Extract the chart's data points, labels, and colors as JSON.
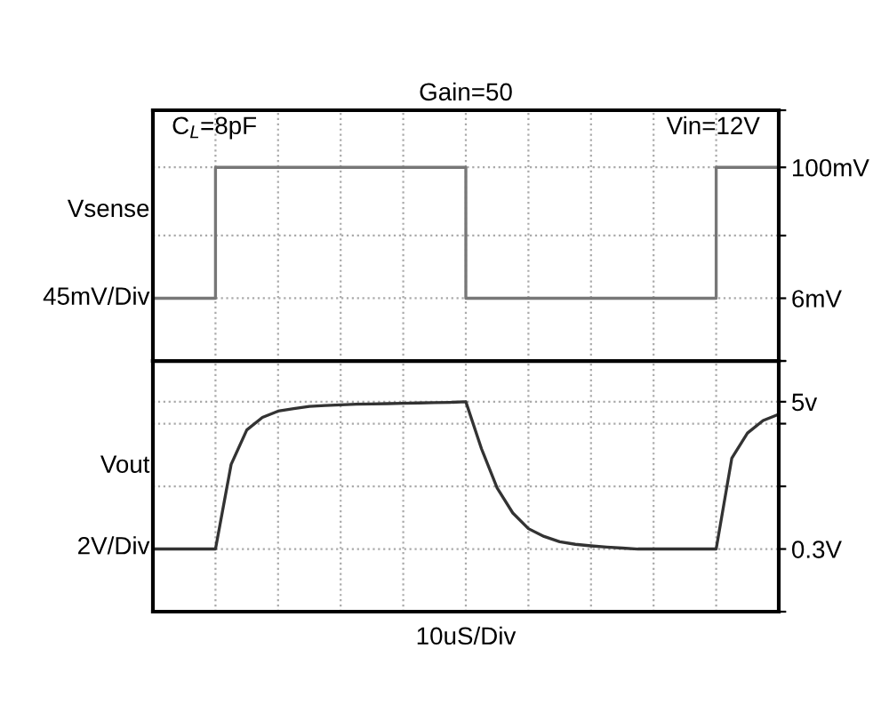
{
  "chart_data": [
    {
      "type": "step",
      "title": "Gain=50",
      "ylabel": "Vsense",
      "annotations": [
        "45mV/Div",
        "C$_{L}$=8pF",
        "Vin=12V"
      ],
      "categories": [
        null,
        null,
        null,
        null,
        null,
        null,
        null,
        null,
        null,
        null,
        null
      ],
      "ylim": [
        -39,
        141
      ],
      "yticks": [
        {
          "value": -39,
          "label": null
        },
        {
          "value": 6,
          "label": "6mV"
        },
        {
          "value": 51,
          "label": null
        },
        {
          "value": 100,
          "label": "100mV"
        },
        {
          "value": 141,
          "label": null
        }
      ],
      "tick_labels": "y",
      "grid": true,
      "series": [
        {
          "color": "#777777",
          "values": [
            6,
            100,
            100,
            100,
            100,
            6,
            6,
            6,
            6,
            100,
            100
          ]
        }
      ]
    },
    {
      "type": "line",
      "ylabel": "Vout",
      "xlabel": "10uS/Div",
      "annotations": [
        "2V/Div"
      ],
      "categories": [
        null,
        null,
        null,
        null,
        null,
        null,
        null,
        null,
        null,
        null,
        null,
        null,
        null,
        null,
        null,
        null,
        null,
        null,
        null,
        null,
        null,
        null,
        null,
        null,
        null,
        null,
        null,
        null,
        null,
        null,
        null,
        null,
        null,
        null,
        null,
        null,
        null,
        null,
        null,
        null,
        null
      ],
      "ylim": [
        -1.7,
        6.3
      ],
      "yticks": [
        {
          "value": -1.7,
          "label": null
        },
        {
          "value": 0.3,
          "label": "0.3V"
        },
        {
          "value": 2.3,
          "label": null
        },
        {
          "value": 4.3,
          "label": null
        },
        {
          "value": 5,
          "label": "5v"
        },
        {
          "value": 6.3,
          "label": null
        }
      ],
      "tick_labels": "y",
      "grid": true,
      "series": [
        {
          "color": "#333333",
          "values": [
            0.3,
            0.3,
            0.3,
            0.3,
            0.3,
            3.0,
            4.1,
            4.5,
            4.7,
            4.78,
            4.85,
            4.88,
            4.9,
            4.92,
            4.93,
            4.94,
            4.95,
            4.96,
            4.97,
            4.98,
            5.0,
            3.5,
            2.25,
            1.45,
            0.95,
            0.7,
            0.53,
            0.45,
            0.4,
            0.36,
            0.33,
            0.3,
            0.3,
            0.3,
            0.3,
            0.3,
            0.3,
            3.2,
            4.0,
            4.4,
            4.6
          ]
        }
      ]
    }
  ]
}
